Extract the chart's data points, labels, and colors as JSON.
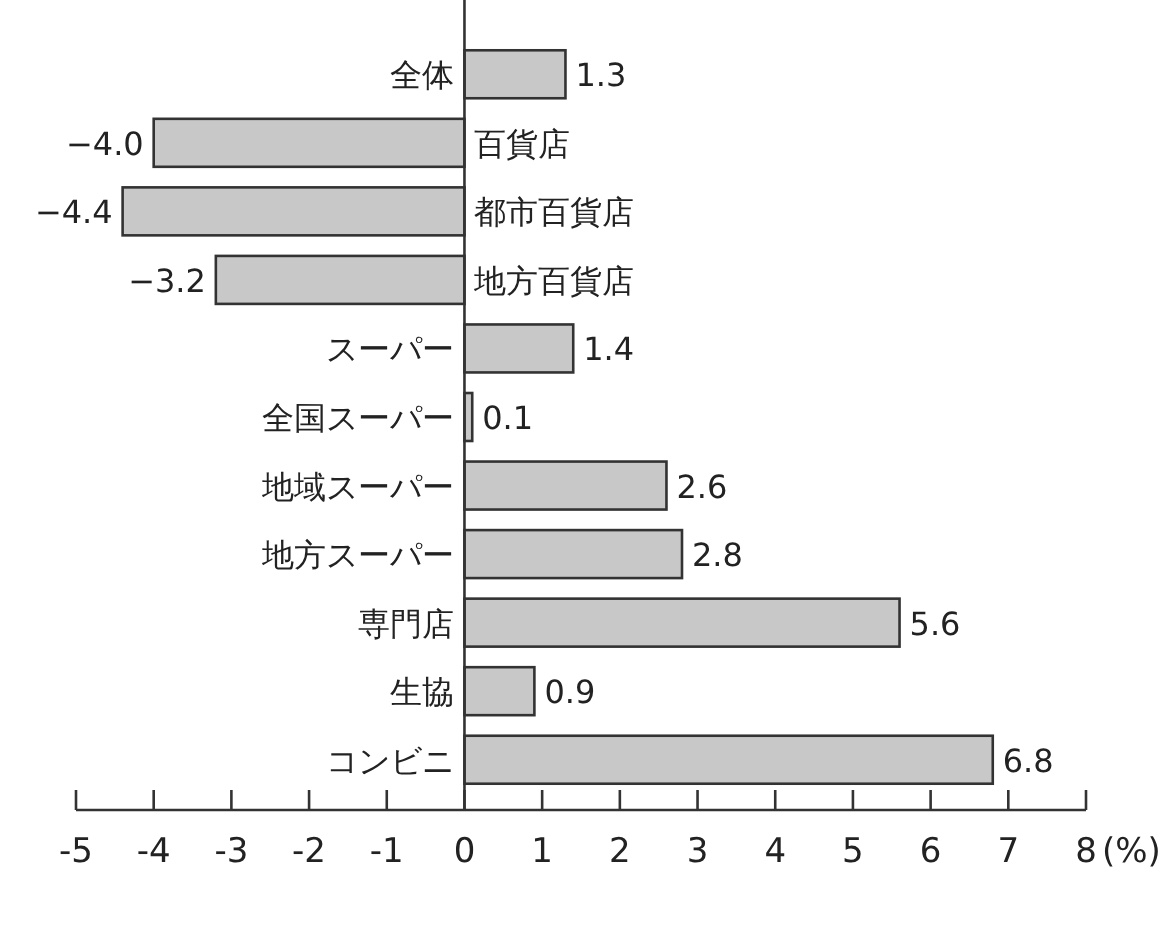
{
  "chart_data": {
    "type": "bar",
    "orientation": "horizontal",
    "xlabel": "(%)",
    "categories": [
      "全体",
      "百貨店",
      "都市百貨店",
      "地方百貨店",
      "スーパー",
      "全国スーパー",
      "地域スーパー",
      "地方スーパー",
      "専門店",
      "生協",
      "コンビニ"
    ],
    "values": [
      1.3,
      -4.0,
      -4.4,
      -3.2,
      1.4,
      0.1,
      2.6,
      2.8,
      5.6,
      0.9,
      6.8
    ],
    "value_labels": [
      "1.3",
      "−4.0",
      "−4.4",
      "−3.2",
      "1.4",
      "0.1",
      "2.6",
      "2.8",
      "5.6",
      "0.9",
      "6.8"
    ],
    "color": "#c8c8c8",
    "xlim": [
      -5,
      8
    ],
    "xticks": [
      -5,
      -4,
      -3,
      -2,
      -1,
      0,
      1,
      2,
      3,
      4,
      5,
      6,
      7,
      8
    ],
    "grid": false
  }
}
